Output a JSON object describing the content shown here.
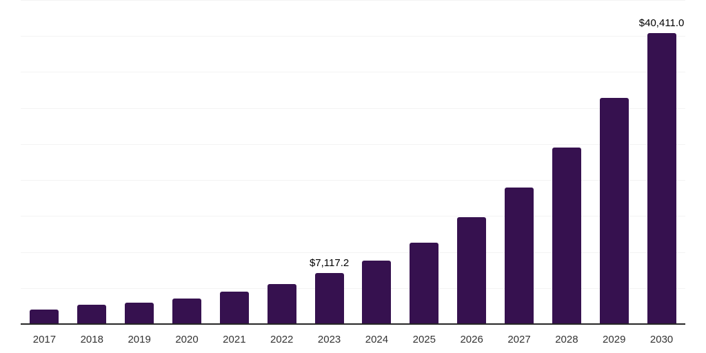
{
  "chart_data": {
    "type": "bar",
    "title": "",
    "xlabel": "",
    "ylabel": "",
    "categories": [
      "2017",
      "2018",
      "2019",
      "2020",
      "2021",
      "2022",
      "2023",
      "2024",
      "2025",
      "2026",
      "2027",
      "2028",
      "2029",
      "2030"
    ],
    "values": [
      2000,
      2680,
      2970,
      3540,
      4500,
      5550,
      7117.2,
      8860,
      11300,
      14840,
      18960,
      24510,
      31400,
      40411
    ],
    "value_labels": [
      "",
      "",
      "",
      "",
      "",
      "",
      "$7,117.2",
      "",
      "",
      "",
      "",
      "",
      "",
      "$40,411.0"
    ],
    "ylim": [
      0,
      45000
    ],
    "gridline_step": 5000,
    "grid": "horizontal",
    "legend_position": "none",
    "colors": {
      "bar": "#36114F",
      "axis": "#262626",
      "gridline": "#F3F3F3",
      "tick_label": "#333333",
      "value_label": "#000000",
      "background": "#FFFFFF"
    }
  }
}
